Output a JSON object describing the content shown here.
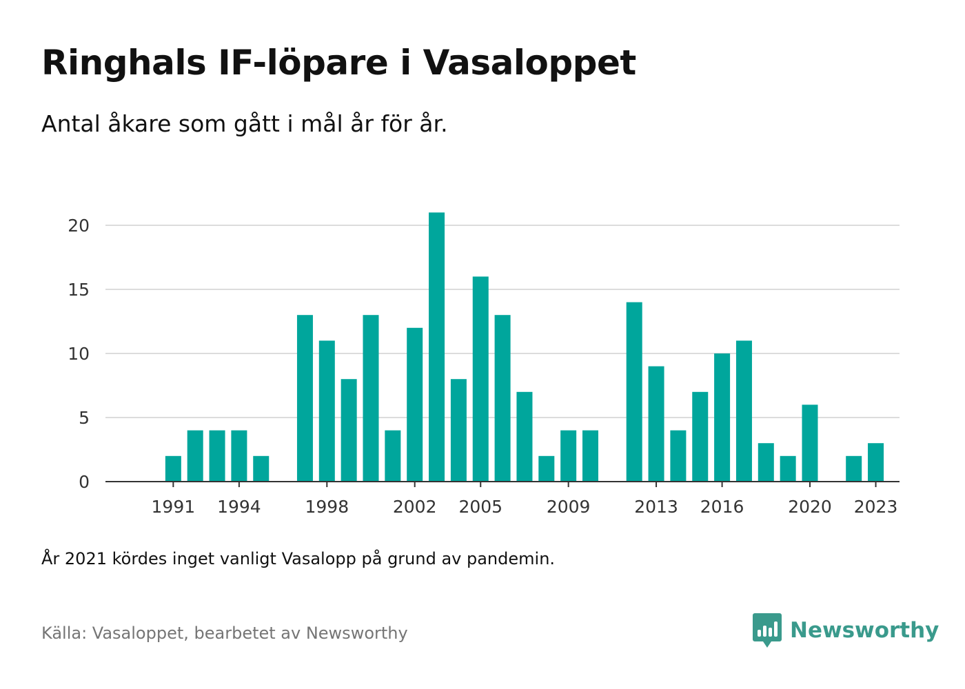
{
  "title": "Ringhals IF-löpare i Vasaloppet",
  "subtitle": "Antal åkare som gått i mål år för år.",
  "note": "År 2021 kördes inget vanligt Vasalopp på grund av pandemin.",
  "source": "Källa: Vasaloppet, bearbetet av Newsworthy",
  "brand": {
    "name": "Newsworthy",
    "icon": "newsworthy-logo-icon"
  },
  "colors": {
    "bar": "#00a69c",
    "grid": "#dcdcdc",
    "axis": "#333333",
    "brand": "#3a9a8c"
  },
  "chart_data": {
    "type": "bar",
    "categories": [
      1990,
      1991,
      1992,
      1993,
      1994,
      1995,
      1996,
      1997,
      1998,
      1999,
      2000,
      2001,
      2002,
      2003,
      2004,
      2005,
      2006,
      2007,
      2008,
      2009,
      2010,
      2011,
      2012,
      2013,
      2014,
      2015,
      2016,
      2017,
      2018,
      2019,
      2020,
      2021,
      2022,
      2023,
      2024
    ],
    "values": [
      0,
      2,
      4,
      4,
      4,
      2,
      0,
      13,
      11,
      8,
      13,
      4,
      12,
      21,
      8,
      16,
      13,
      7,
      2,
      4,
      4,
      0,
      14,
      9,
      4,
      7,
      10,
      11,
      3,
      2,
      6,
      0,
      2,
      3,
      0
    ],
    "xticks": [
      1991,
      1994,
      1998,
      2002,
      2005,
      2009,
      2013,
      2016,
      2020,
      2023
    ],
    "yticks": [
      0,
      5,
      10,
      15,
      20
    ],
    "ylim": [
      0,
      22
    ],
    "grid": true,
    "legend": "none"
  }
}
